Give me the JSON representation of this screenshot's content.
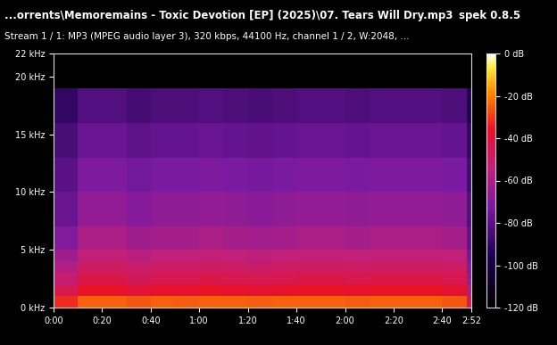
{
  "chart_data": {
    "type": "heatmap",
    "title": "...orrents\\Memoremains - Toxic Devotion [EP] (2025)\\07. Tears Will Dry.mp3",
    "subtitle": "Stream 1 / 1: MP3 (MPEG audio layer 3), 320 kbps, 44100 Hz, channel 1 / 2, W:2048, ...",
    "annotations": [
      "spek 0.8.5"
    ],
    "x_bins": [
      0,
      10,
      20,
      30,
      40,
      50,
      60,
      70,
      80,
      90,
      100,
      110,
      120,
      130,
      140,
      150,
      160,
      170,
      172
    ],
    "y_bins": [
      0,
      1,
      2,
      3,
      4,
      5,
      7,
      10,
      13,
      16,
      19,
      22
    ],
    "cells": [
      [
        -32,
        -24,
        -24,
        -26,
        -24,
        -25,
        -24,
        -24,
        -25,
        -24,
        -24,
        -24,
        -25,
        -24,
        -24,
        -24,
        -26,
        -45
      ],
      [
        -45,
        -36,
        -36,
        -39,
        -37,
        -37,
        -36,
        -37,
        -38,
        -37,
        -36,
        -36,
        -37,
        -36,
        -36,
        -36,
        -38,
        -60
      ],
      [
        -52,
        -43,
        -43,
        -46,
        -44,
        -44,
        -43,
        -44,
        -45,
        -44,
        -43,
        -43,
        -44,
        -43,
        -43,
        -43,
        -44,
        -66
      ],
      [
        -58,
        -48,
        -48,
        -51,
        -49,
        -49,
        -48,
        -49,
        -50,
        -49,
        -48,
        -48,
        -49,
        -48,
        -48,
        -48,
        -49,
        -70
      ],
      [
        -63,
        -53,
        -53,
        -56,
        -54,
        -54,
        -53,
        -54,
        -55,
        -54,
        -53,
        -53,
        -54,
        -53,
        -53,
        -53,
        -54,
        -74
      ],
      [
        -70,
        -60,
        -60,
        -63,
        -61,
        -61,
        -60,
        -61,
        -62,
        -61,
        -60,
        -60,
        -61,
        -60,
        -60,
        -60,
        -61,
        -78
      ],
      [
        -76,
        -66,
        -66,
        -69,
        -67,
        -67,
        -66,
        -67,
        -68,
        -67,
        -66,
        -66,
        -67,
        -66,
        -66,
        -66,
        -67,
        -82
      ],
      [
        -80,
        -71,
        -71,
        -74,
        -72,
        -72,
        -71,
        -72,
        -73,
        -72,
        -71,
        -71,
        -72,
        -71,
        -71,
        -71,
        -72,
        -86
      ],
      [
        -84,
        -76,
        -76,
        -79,
        -77,
        -77,
        -76,
        -77,
        -78,
        -77,
        -76,
        -76,
        -77,
        -76,
        -76,
        -76,
        -77,
        -90
      ],
      [
        -90,
        -82,
        -82,
        -85,
        -83,
        -83,
        -82,
        -83,
        -84,
        -83,
        -82,
        -82,
        -83,
        -82,
        -82,
        -82,
        -83,
        -95
      ],
      [
        -120,
        -120,
        -120,
        -120,
        -120,
        -120,
        -120,
        -120,
        -120,
        -120,
        -120,
        -120,
        -120,
        -120,
        -120,
        -120,
        -120,
        -120
      ]
    ],
    "xlim": [
      0,
      172
    ],
    "xticks": [
      {
        "value": 0,
        "label": "0:00"
      },
      {
        "value": 20,
        "label": "0:20"
      },
      {
        "value": 40,
        "label": "0:40"
      },
      {
        "value": 60,
        "label": "1:00"
      },
      {
        "value": 80,
        "label": "1:20"
      },
      {
        "value": 100,
        "label": "1:40"
      },
      {
        "value": 120,
        "label": "2:00"
      },
      {
        "value": 140,
        "label": "2:20"
      },
      {
        "value": 160,
        "label": "2:40"
      },
      {
        "value": 172,
        "label": "2:52"
      }
    ],
    "ylim": [
      0,
      22
    ],
    "yticks": [
      {
        "value": 0,
        "label": "0 kHz"
      },
      {
        "value": 5,
        "label": "5 kHz"
      },
      {
        "value": 10,
        "label": "10 kHz"
      },
      {
        "value": 15,
        "label": "15 kHz"
      },
      {
        "value": 20,
        "label": "20 kHz"
      },
      {
        "value": 22,
        "label": "22 kHz"
      }
    ],
    "colorbar": {
      "range": [
        -120,
        0
      ],
      "ticks": [
        {
          "value": 0,
          "label": "0 dB"
        },
        {
          "value": -20,
          "label": "-20 dB"
        },
        {
          "value": -40,
          "label": "-40 dB"
        },
        {
          "value": -60,
          "label": "-60 dB"
        },
        {
          "value": -80,
          "label": "-80 dB"
        },
        {
          "value": -100,
          "label": "-100 dB"
        },
        {
          "value": -120,
          "label": "-120 dB"
        }
      ]
    },
    "grid": false
  }
}
